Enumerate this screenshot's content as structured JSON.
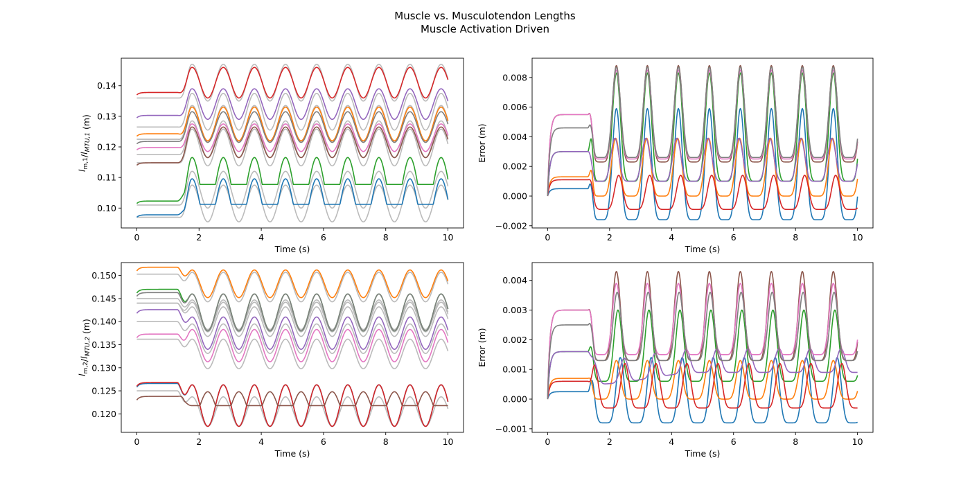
{
  "figure": {
    "title": "Muscle vs. Musculotendon Lengths",
    "subtitle": "Muscle Activation Driven"
  },
  "colors": {
    "tendon_gray": "#bbbbbb",
    "blue": "#1f77b4",
    "orange": "#ff7f0e",
    "green": "#2ca02c",
    "red": "#d62728",
    "purple": "#9467bd",
    "brown": "#8c564b",
    "pink": "#e377c2",
    "gray": "#7f7f7f"
  },
  "chart_data": [
    {
      "type": "line",
      "panel": "top-left",
      "xlabel": "Time (s)",
      "ylabel_main": "l",
      "ylabel_sub1": "m,1",
      "ylabel_mid": "/l",
      "ylabel_sub2": "MTU,1",
      "ylabel_unit": " (m)",
      "xlim": [
        -0.5,
        10.5
      ],
      "ylim": [
        0.0935,
        0.149
      ],
      "xticks": [
        0,
        2,
        4,
        6,
        8,
        10
      ],
      "yticks": [
        0.1,
        0.11,
        0.12,
        0.13,
        0.14
      ],
      "ytick_labels": [
        "0.10",
        "0.11",
        "0.12",
        "0.13",
        "0.14"
      ],
      "series": [
        {
          "color": "blue",
          "kind": "muscle",
          "x0": 0.097,
          "base": 0.1015,
          "amp": 0.0052,
          "period": 1.0,
          "phase": 0.25,
          "rectify": true,
          "decay": 0.08
        },
        {
          "color": "orange",
          "kind": "muscle",
          "x0": 0.1235,
          "base": 0.1275,
          "amp": 0.0055,
          "period": 1.0,
          "phase": 0.25,
          "rectify": false,
          "decay": 0.08
        },
        {
          "color": "green",
          "kind": "muscle",
          "x0": 0.1015,
          "base": 0.108,
          "amp": 0.0055,
          "period": 1.0,
          "phase": 0.25,
          "rectify": true,
          "decay": 0.1
        },
        {
          "color": "red",
          "kind": "muscle",
          "x0": 0.137,
          "base": 0.141,
          "amp": 0.005,
          "period": 1.0,
          "phase": 0.25,
          "rectify": false,
          "decay": 0.05
        },
        {
          "color": "purple",
          "kind": "muscle",
          "x0": 0.1295,
          "base": 0.134,
          "amp": 0.005,
          "period": 1.0,
          "phase": 0.25,
          "rectify": false,
          "decay": 0.06
        },
        {
          "color": "brown",
          "kind": "muscle",
          "x0": 0.114,
          "base": 0.1215,
          "amp": 0.005,
          "period": 1.0,
          "phase": 0.25,
          "rectify": false,
          "decay": 0.12
        },
        {
          "color": "pink",
          "kind": "muscle",
          "x0": 0.119,
          "base": 0.123,
          "amp": 0.0045,
          "period": 1.0,
          "phase": 0.25,
          "rectify": false,
          "decay": 0.1
        },
        {
          "color": "gray",
          "kind": "muscle",
          "x0": 0.121,
          "base": 0.1265,
          "amp": 0.005,
          "period": 1.0,
          "phase": 0.25,
          "rectify": false,
          "decay": 0.08
        },
        {
          "color": "tendon_gray",
          "kind": "mtu",
          "x0": 0.097,
          "base": 0.1015,
          "amp": 0.006
        },
        {
          "color": "tendon_gray",
          "kind": "mtu",
          "x0": 0.1225,
          "base": 0.1275,
          "amp": 0.006
        },
        {
          "color": "tendon_gray",
          "kind": "mtu",
          "x0": 0.101,
          "base": 0.106,
          "amp": 0.006
        },
        {
          "color": "tendon_gray",
          "kind": "mtu",
          "x0": 0.136,
          "base": 0.141,
          "amp": 0.006
        },
        {
          "color": "tendon_gray",
          "kind": "mtu",
          "x0": 0.1265,
          "base": 0.1315,
          "amp": 0.006
        },
        {
          "color": "tendon_gray",
          "kind": "mtu",
          "x0": 0.1148,
          "base": 0.1198,
          "amp": 0.006
        },
        {
          "color": "tendon_gray",
          "kind": "mtu",
          "x0": 0.1175,
          "base": 0.1225,
          "amp": 0.006
        },
        {
          "color": "tendon_gray",
          "kind": "mtu",
          "x0": 0.1225,
          "base": 0.1275,
          "amp": 0.006
        }
      ]
    },
    {
      "type": "line",
      "panel": "top-right",
      "xlabel": "Time (s)",
      "ylabel": "Error (m)",
      "xlim": [
        -0.5,
        10.5
      ],
      "ylim": [
        -0.00215,
        0.0093
      ],
      "xticks": [
        0,
        2,
        4,
        6,
        8,
        10
      ],
      "yticks": [
        -0.002,
        0.0,
        0.002,
        0.004,
        0.006,
        0.008
      ],
      "ytick_labels": [
        "−0.002",
        "0.000",
        "0.002",
        "0.004",
        "0.006",
        "0.008"
      ],
      "series": [
        {
          "color": "blue",
          "init": 0.0005,
          "troughs": -0.0016,
          "peaks": 0.0059,
          "offset": 0.0,
          "spike": 0.0
        },
        {
          "color": "orange",
          "init": 0.0013,
          "troughs": 0.0,
          "peaks": 0.0039,
          "offset": -0.05,
          "spike": 0.0006
        },
        {
          "color": "green",
          "init": 0.003,
          "troughs": 0.001,
          "peaks": 0.0083,
          "offset": 0.0,
          "spike": 0.0007
        },
        {
          "color": "red",
          "init": 0.0011,
          "troughs": -0.0009,
          "peaks": 0.0014,
          "offset": 0.15,
          "spike": 0.0
        },
        {
          "color": "purple",
          "init": 0.003,
          "troughs": 0.001,
          "peaks": 0.0039,
          "offset": -0.1,
          "spike": 0.0
        },
        {
          "color": "brown",
          "init": 0.0055,
          "troughs": 0.0023,
          "peaks": 0.0088,
          "offset": 0.0,
          "spike": 0.0
        },
        {
          "color": "pink",
          "init": 0.0055,
          "troughs": 0.0025,
          "peaks": 0.0085,
          "offset": 0.0,
          "spike": 0.0
        },
        {
          "color": "gray",
          "init": 0.0046,
          "troughs": 0.0026,
          "peaks": 0.0087,
          "offset": 0.0,
          "spike": 0.0
        }
      ]
    },
    {
      "type": "line",
      "panel": "bottom-left",
      "xlabel": "Time (s)",
      "ylabel_main": "l",
      "ylabel_sub1": "m,2",
      "ylabel_mid": "/l",
      "ylabel_sub2": "MTU,2",
      "ylabel_unit": " (m)",
      "xlim": [
        -0.5,
        10.5
      ],
      "ylim": [
        0.116,
        0.1528
      ],
      "xticks": [
        0,
        2,
        4,
        6,
        8,
        10
      ],
      "yticks": [
        0.12,
        0.125,
        0.13,
        0.135,
        0.14,
        0.145,
        0.15
      ],
      "ytick_labels": [
        "0.120",
        "0.125",
        "0.130",
        "0.135",
        "0.140",
        "0.145",
        "0.150"
      ],
      "series": [
        {
          "color": "blue",
          "kind": "muscle",
          "x0": 0.1258,
          "base": 0.1218,
          "amp": 0.0045,
          "rectify": false
        },
        {
          "color": "orange",
          "kind": "muscle",
          "x0": 0.151,
          "base": 0.1482,
          "amp": 0.003,
          "rectify": false
        },
        {
          "color": "green",
          "kind": "muscle",
          "x0": 0.1462,
          "base": 0.142,
          "amp": 0.004,
          "rectify": false
        },
        {
          "color": "red",
          "kind": "muscle",
          "x0": 0.126,
          "base": 0.1218,
          "amp": 0.0045,
          "rectify": false
        },
        {
          "color": "purple",
          "kind": "muscle",
          "x0": 0.1418,
          "base": 0.1375,
          "amp": 0.0035,
          "rectify": false
        },
        {
          "color": "brown",
          "kind": "muscle",
          "x0": 0.123,
          "base": 0.1218,
          "amp": 0.003,
          "rectify": "low"
        },
        {
          "color": "pink",
          "kind": "muscle",
          "x0": 0.1365,
          "base": 0.1348,
          "amp": 0.0035,
          "rectify": false
        },
        {
          "color": "gray",
          "kind": "muscle",
          "x0": 0.1455,
          "base": 0.142,
          "amp": 0.004,
          "rectify": false
        },
        {
          "color": "tendon_gray",
          "kind": "mtu",
          "x0": 0.125,
          "base": 0.1205,
          "amp": 0.0032
        },
        {
          "color": "tendon_gray",
          "kind": "mtu",
          "x0": 0.1503,
          "base": 0.1475,
          "amp": 0.0032
        },
        {
          "color": "tendon_gray",
          "kind": "mtu",
          "x0": 0.144,
          "base": 0.141,
          "amp": 0.0032
        },
        {
          "color": "tendon_gray",
          "kind": "mtu",
          "x0": 0.145,
          "base": 0.1415,
          "amp": 0.0032
        },
        {
          "color": "tendon_gray",
          "kind": "mtu",
          "x0": 0.14,
          "base": 0.1363,
          "amp": 0.0032
        },
        {
          "color": "tendon_gray",
          "kind": "mtu",
          "x0": 0.1362,
          "base": 0.133,
          "amp": 0.0032
        },
        {
          "color": "tendon_gray",
          "kind": "mtu",
          "x0": 0.144,
          "base": 0.14,
          "amp": 0.0032
        }
      ]
    },
    {
      "type": "line",
      "panel": "bottom-right",
      "xlabel": "Time (s)",
      "ylabel": "Error (m)",
      "xlim": [
        -0.5,
        10.5
      ],
      "ylim": [
        -0.00112,
        0.0046
      ],
      "xticks": [
        0,
        2,
        4,
        6,
        8,
        10
      ],
      "yticks": [
        -0.001,
        0.0,
        0.001,
        0.002,
        0.003,
        0.004
      ],
      "ytick_labels": [
        "−0.001",
        "0.000",
        "0.001",
        "0.002",
        "0.003",
        "0.004"
      ],
      "series": [
        {
          "color": "blue",
          "init": 0.00025,
          "troughs": -0.0008,
          "peaks": 0.0014,
          "offset": 0.25,
          "drift": 0.0
        },
        {
          "color": "orange",
          "init": 0.0007,
          "troughs": 0.0,
          "peaks": 0.0013,
          "offset": 0.0,
          "drift": 0.0
        },
        {
          "color": "green",
          "init": 0.0016,
          "troughs": 0.0006,
          "peaks": 0.003,
          "offset": 0.1,
          "drift": 0.0
        },
        {
          "color": "red",
          "init": 0.0006,
          "troughs": -0.0003,
          "peaks": 0.0012,
          "offset": 0.55,
          "drift": 0.0
        },
        {
          "color": "purple",
          "init": 0.0016,
          "troughs": 0.0007,
          "peaks": 0.0015,
          "offset": 0.5,
          "drift": 0.0004
        },
        {
          "color": "brown",
          "init": 0.003,
          "troughs": 0.0013,
          "peaks": 0.0043,
          "offset": 0.0,
          "drift": 0.0
        },
        {
          "color": "pink",
          "init": 0.003,
          "troughs": 0.0015,
          "peaks": 0.0039,
          "offset": 0.0,
          "drift": 0.0
        },
        {
          "color": "gray",
          "init": 0.0025,
          "troughs": 0.0013,
          "peaks": 0.0036,
          "offset": 0.05,
          "drift": 0.0
        }
      ]
    }
  ]
}
